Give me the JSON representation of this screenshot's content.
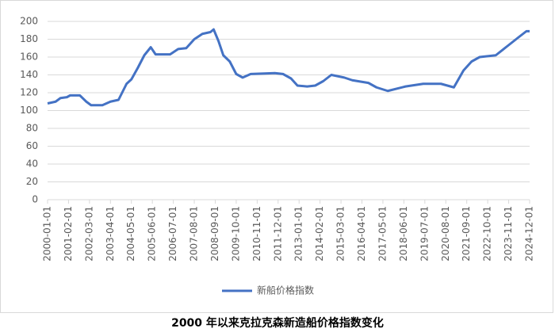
{
  "chart_data": {
    "type": "line",
    "title": "2000 年以来克拉克森新造船价格指数变化",
    "x": [
      "2000-01-01",
      "2000-06-01",
      "2000-09-01",
      "2001-01-01",
      "2001-03-01",
      "2001-09-01",
      "2002-01-01",
      "2002-04-01",
      "2002-11-01",
      "2003-04-01",
      "2003-09-01",
      "2004-02-01",
      "2004-05-01",
      "2004-09-01",
      "2005-01-01",
      "2005-05-01",
      "2005-08-01",
      "2006-05-01",
      "2006-10-01",
      "2007-03-01",
      "2007-08-01",
      "2008-01-01",
      "2008-06-01",
      "2008-08-01",
      "2008-11-01",
      "2009-02-01",
      "2009-06-01",
      "2009-10-01",
      "2010-02-01",
      "2010-07-01",
      "2011-10-01",
      "2012-03-01",
      "2012-08-01",
      "2012-12-01",
      "2013-06-01",
      "2013-11-01",
      "2014-04-01",
      "2014-09-01",
      "2015-05-01",
      "2015-10-01",
      "2016-08-01",
      "2017-01-01",
      "2017-08-01",
      "2018-07-01",
      "2019-06-01",
      "2020-05-01",
      "2020-09-01",
      "2021-01-01",
      "2021-07-01",
      "2021-12-01",
      "2022-05-01",
      "2023-03-01",
      "2023-10-01",
      "2024-05-01",
      "2024-10-01",
      "2024-12-01"
    ],
    "series": [
      {
        "name": "新船价格指数",
        "color": "#4472c4",
        "values": [
          108,
          110,
          114,
          115,
          117,
          117,
          110,
          106,
          106,
          110,
          112,
          130,
          135,
          148,
          162,
          171,
          163,
          163,
          169,
          170,
          180,
          186,
          188,
          191,
          178,
          162,
          155,
          141,
          137,
          141,
          142,
          141,
          136,
          128,
          127,
          128,
          133,
          140,
          137,
          134,
          131,
          126,
          122,
          127,
          130,
          130,
          128,
          126,
          145,
          155,
          160,
          162,
          172,
          182,
          189,
          189
        ]
      }
    ],
    "xlim": [
      "2000-01-01",
      "2024-12-01"
    ],
    "xticks": [
      "2000-01-01",
      "2001-02-01",
      "2002-03-01",
      "2003-04-01",
      "2004-05-01",
      "2005-06-01",
      "2006-07-01",
      "2007-08-01",
      "2008-09-01",
      "2009-10-01",
      "2010-11-01",
      "2011-12-01",
      "2013-01-01",
      "2014-02-01",
      "2015-03-01",
      "2016-04-01",
      "2017-05-01",
      "2018-06-01",
      "2019-07-01",
      "2020-08-01",
      "2021-09-01",
      "2022-10-01",
      "2023-11-01",
      "2024-12-01"
    ],
    "ylim": [
      0,
      200
    ],
    "yticks": [
      0,
      20,
      40,
      60,
      80,
      100,
      120,
      140,
      160,
      180,
      200
    ],
    "grid": true
  }
}
